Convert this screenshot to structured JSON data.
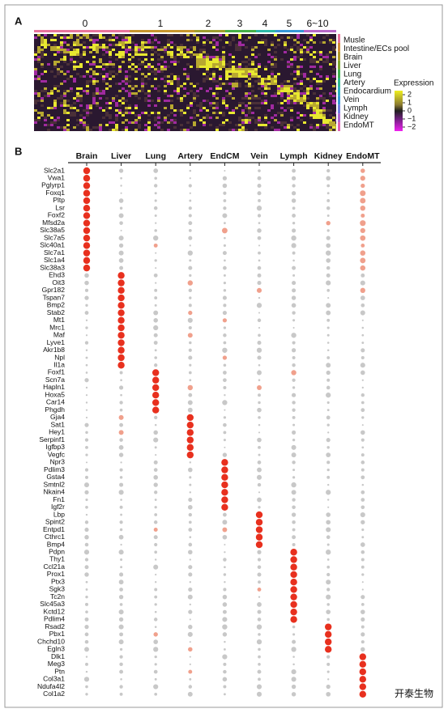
{
  "panel_a": {
    "label": "A",
    "clusters": [
      "0",
      "1",
      "2",
      "3",
      "4",
      "5",
      "6~10"
    ],
    "cluster_colors": [
      "#e8749c",
      "#c8962e",
      "#a0a030",
      "#48b048",
      "#30b8a8",
      "#3898d8",
      "#b868c8"
    ],
    "tissues": [
      "Musle",
      "Intestine/ECs pool",
      "Brain",
      "Liver",
      "Lung",
      "Artery",
      "Endocardium",
      "Vein",
      "Lymph",
      "Kidney",
      "EndoMT"
    ],
    "tissue_colors": [
      "#e8749c",
      "#d08a38",
      "#b09a28",
      "#80a830",
      "#40b050",
      "#30b890",
      "#30b0c0",
      "#3898d8",
      "#7080e0",
      "#b068d0",
      "#e060b0"
    ],
    "legend_title": "Expression",
    "legend_ticks": [
      2,
      1,
      0,
      {
        "value": -1,
        "label": "−1"
      },
      {
        "value": -2,
        "label": "−2"
      }
    ],
    "legend_range": [
      -2.5,
      2.5
    ]
  },
  "panel_b": {
    "label": "B",
    "columns": [
      "Brain",
      "Liver",
      "Lung",
      "Artery",
      "EndCM",
      "Vein",
      "Lymph",
      "Kidney",
      "EndoMT"
    ],
    "groups": [
      {
        "genes": [
          {
            "name": "Slc2a1",
            "color": "#111"
          },
          {
            "name": "Vwa1",
            "color": "#111"
          },
          {
            "name": "Pglyrp1",
            "color": "#111"
          },
          {
            "name": "Foxq1",
            "color": "#111"
          },
          {
            "name": "Pltp",
            "color": "#111"
          },
          {
            "name": "Lsr",
            "color": "#111"
          },
          {
            "name": "Foxf2",
            "color": "#111"
          },
          {
            "name": "Mfsd2a",
            "color": "#111"
          },
          {
            "name": "Slc38a5",
            "color": "#d42a2a"
          },
          {
            "name": "Slc7a5",
            "color": "#d42a2a"
          },
          {
            "name": "Slc40a1",
            "color": "#d42a2a"
          },
          {
            "name": "Slc7a1",
            "color": "#d42a2a"
          },
          {
            "name": "Slc1a4",
            "color": "#d42a2a"
          },
          {
            "name": "Slc38a3",
            "color": "#d42a2a"
          }
        ]
      },
      {
        "genes": [
          {
            "name": "Ehd3",
            "color": "#111"
          },
          {
            "name": "Oit3",
            "color": "#111"
          },
          {
            "name": "Gpr182",
            "color": "#111"
          },
          {
            "name": "Tspan7",
            "color": "#111"
          },
          {
            "name": "Bmp2",
            "color": "#111"
          },
          {
            "name": "Stab2",
            "color": "#111"
          },
          {
            "name": "Mt1",
            "color": "#111"
          },
          {
            "name": "Mrc1",
            "color": "#111"
          },
          {
            "name": "Maf",
            "color": "#111"
          },
          {
            "name": "Lyve1",
            "color": "#111"
          },
          {
            "name": "Akr1b8",
            "color": "#d42a2a"
          },
          {
            "name": "Npl",
            "color": "#d42a2a"
          },
          {
            "name": "Il1a",
            "color": "#d42a2a"
          }
        ]
      },
      {
        "genes": [
          {
            "name": "Foxf1",
            "color": "#111"
          },
          {
            "name": "Scn7a",
            "color": "#111"
          },
          {
            "name": "Hapln1",
            "color": "#d42a2a"
          },
          {
            "name": "Hoxa5",
            "color": "#d42a2a"
          },
          {
            "name": "Car14",
            "color": "#d42a2a"
          },
          {
            "name": "Phgdh",
            "color": "#d42a2a"
          }
        ]
      },
      {
        "genes": [
          {
            "name": "Gja4",
            "color": "#111"
          },
          {
            "name": "Sat1",
            "color": "#111"
          },
          {
            "name": "Hey1",
            "color": "#111"
          },
          {
            "name": "Serpinf1",
            "color": "#111"
          },
          {
            "name": "Igfbp3",
            "color": "#111"
          },
          {
            "name": "Vegfc",
            "color": "#111"
          }
        ]
      },
      {
        "genes": [
          {
            "name": "Npr3",
            "color": "#111"
          },
          {
            "name": "Pdlim3",
            "color": "#d42a2a"
          },
          {
            "name": "Gsta4",
            "color": "#d42a2a"
          },
          {
            "name": "Smtnl2",
            "color": "#d42a2a"
          },
          {
            "name": "Nkain4",
            "color": "#d42a2a"
          },
          {
            "name": "Fn1",
            "color": "#d42a2a"
          },
          {
            "name": "Igf2r",
            "color": "#d42a2a"
          }
        ]
      },
      {
        "genes": [
          {
            "name": "Lbp",
            "color": "#111"
          },
          {
            "name": "Spint2",
            "color": "#111"
          },
          {
            "name": "Entpd1",
            "color": "#111"
          },
          {
            "name": "Cthrc1",
            "color": "#111"
          },
          {
            "name": "Bmp4",
            "color": "#111"
          }
        ]
      },
      {
        "genes": [
          {
            "name": "Pdpn",
            "color": "#111"
          },
          {
            "name": "Thy1",
            "color": "#111"
          },
          {
            "name": "Ccl21a",
            "color": "#111"
          },
          {
            "name": "Prox1",
            "color": "#111"
          },
          {
            "name": "Ptx3",
            "color": "#d42a2a"
          },
          {
            "name": "Sgk3",
            "color": "#d42a2a"
          },
          {
            "name": "Tc2n",
            "color": "#d42a2a"
          },
          {
            "name": "Slc45a3",
            "color": "#d42a2a"
          },
          {
            "name": "Kctd12",
            "color": "#d42a2a"
          },
          {
            "name": "Pdlim4",
            "color": "#d42a2a"
          }
        ]
      },
      {
        "genes": [
          {
            "name": "Rsad2",
            "color": "#111"
          },
          {
            "name": "Pbx1",
            "color": "#111"
          },
          {
            "name": "Chchd10",
            "color": "#d42a2a"
          },
          {
            "name": "Egln3",
            "color": "#d42a2a"
          }
        ]
      },
      {
        "genes": [
          {
            "name": "Dlk1",
            "color": "#111"
          },
          {
            "name": "Meg3",
            "color": "#111"
          },
          {
            "name": "Ptn",
            "color": "#111"
          },
          {
            "name": "Col3a1",
            "color": "#111"
          },
          {
            "name": "Ndufa4l2",
            "color": "#111"
          },
          {
            "name": "Col1a2",
            "color": "#111"
          }
        ]
      }
    ]
  },
  "watermark": "开泰生物"
}
